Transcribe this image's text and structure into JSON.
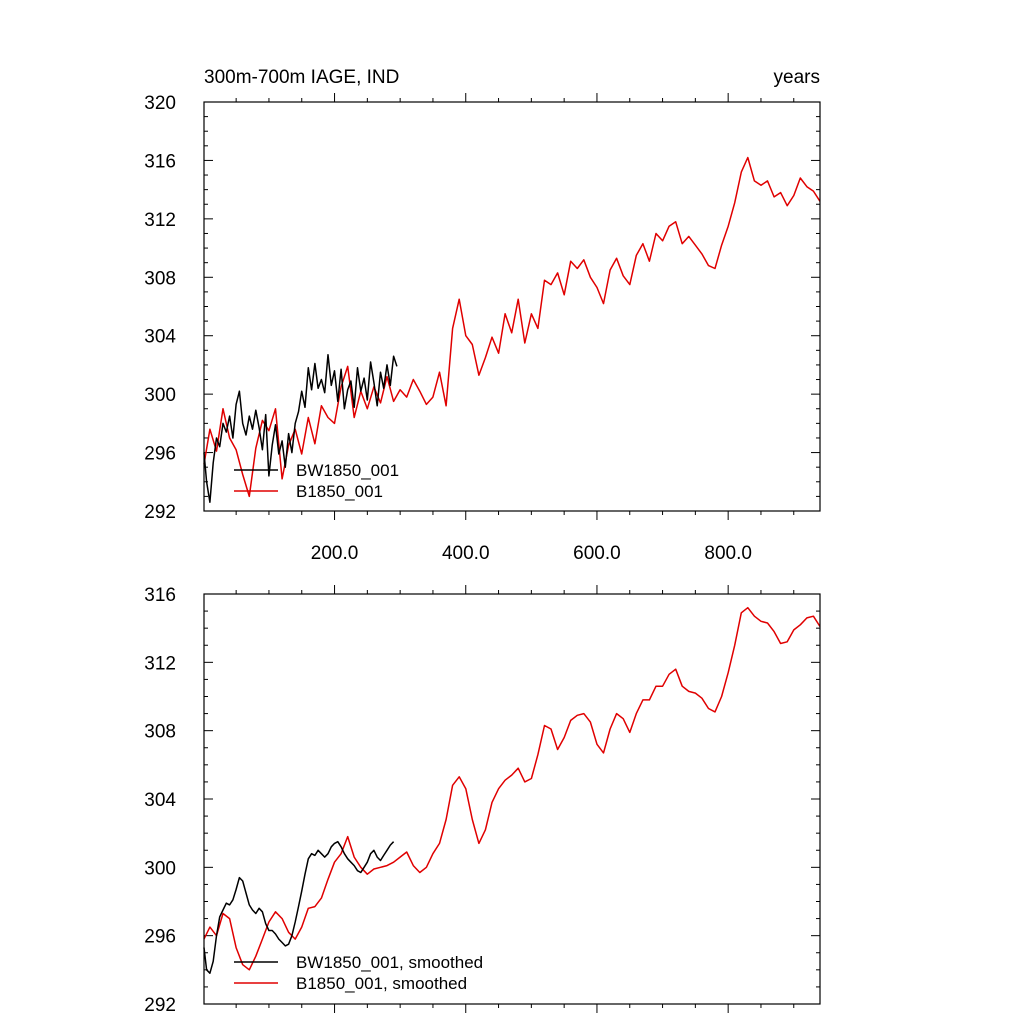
{
  "colors": {
    "bw": "#000000",
    "b": "#e00000",
    "frame": "#000000",
    "background": "#ffffff"
  },
  "chart_data": [
    {
      "type": "line",
      "title": "300m-700m IAGE, IND",
      "units": "years",
      "xlim": [
        1,
        940
      ],
      "ylim": [
        292,
        320
      ],
      "grid": false,
      "legend_placement": "bottom-left",
      "x_ticks": [
        "200.0",
        "400.0",
        "600.0",
        "800.0"
      ],
      "y_ticks": [
        "292",
        "296",
        "300",
        "304",
        "308",
        "312",
        "316",
        "320"
      ],
      "series": [
        {
          "name": "BW1850_001",
          "color": "#000000",
          "x": [
            1,
            5,
            10,
            15,
            20,
            25,
            30,
            35,
            40,
            45,
            50,
            55,
            60,
            65,
            70,
            75,
            80,
            85,
            90,
            95,
            100,
            105,
            110,
            115,
            120,
            125,
            130,
            135,
            140,
            145,
            150,
            155,
            160,
            165,
            170,
            175,
            180,
            185,
            190,
            195,
            200,
            205,
            210,
            215,
            220,
            225,
            230,
            235,
            240,
            245,
            250,
            255,
            260,
            265,
            270,
            275,
            280,
            285,
            290,
            295
          ],
          "values": [
            296.0,
            294.0,
            292.6,
            295.3,
            297.0,
            296.4,
            298.0,
            297.4,
            298.5,
            297.0,
            299.3,
            300.2,
            298.0,
            297.2,
            298.5,
            297.6,
            298.9,
            297.7,
            296.2,
            298.6,
            294.4,
            296.5,
            297.9,
            295.9,
            296.8,
            295.0,
            297.3,
            296.0,
            298.0,
            298.8,
            300.2,
            299.1,
            301.8,
            300.3,
            302.1,
            300.4,
            301.0,
            300.1,
            302.7,
            300.6,
            301.6,
            299.5,
            301.7,
            299.0,
            300.3,
            300.9,
            299.1,
            301.8,
            300.2,
            301.1,
            299.6,
            302.2,
            300.8,
            299.2,
            301.5,
            300.4,
            302.0,
            300.6,
            302.6,
            301.9
          ]
        },
        {
          "name": "B1850_001",
          "color": "#e00000",
          "x": [
            1,
            10,
            20,
            30,
            40,
            50,
            60,
            70,
            80,
            90,
            100,
            110,
            120,
            130,
            140,
            150,
            160,
            170,
            180,
            190,
            200,
            210,
            220,
            230,
            240,
            250,
            260,
            270,
            280,
            290,
            300,
            310,
            320,
            330,
            340,
            350,
            360,
            370,
            380,
            390,
            400,
            410,
            420,
            430,
            440,
            450,
            460,
            470,
            480,
            490,
            500,
            510,
            520,
            530,
            540,
            550,
            560,
            570,
            580,
            590,
            600,
            610,
            620,
            630,
            640,
            650,
            660,
            670,
            680,
            690,
            700,
            710,
            720,
            730,
            740,
            750,
            760,
            770,
            780,
            790,
            800,
            810,
            820,
            830,
            840,
            850,
            860,
            870,
            880,
            890,
            900,
            910,
            920,
            930,
            940
          ],
          "values": [
            295.2,
            297.6,
            296.1,
            299.0,
            297.0,
            296.2,
            294.5,
            293.0,
            296.3,
            298.2,
            297.5,
            299.0,
            294.2,
            296.5,
            297.6,
            295.9,
            298.4,
            296.6,
            299.2,
            298.4,
            298.0,
            300.5,
            301.9,
            298.4,
            300.2,
            299.0,
            300.5,
            299.4,
            301.2,
            299.5,
            300.3,
            299.8,
            301.0,
            300.2,
            299.3,
            299.8,
            301.5,
            299.2,
            304.5,
            306.5,
            304.0,
            303.4,
            301.3,
            302.5,
            303.9,
            302.8,
            305.5,
            304.2,
            306.5,
            303.5,
            305.5,
            304.5,
            307.8,
            307.5,
            308.3,
            306.8,
            309.1,
            308.6,
            309.2,
            308.0,
            307.3,
            306.2,
            308.5,
            309.3,
            308.1,
            307.5,
            309.5,
            310.3,
            309.1,
            311.0,
            310.5,
            311.5,
            311.8,
            310.3,
            310.8,
            310.2,
            309.6,
            308.8,
            308.6,
            310.2,
            311.5,
            313.1,
            315.2,
            316.2,
            314.6,
            314.3,
            314.6,
            313.5,
            313.8,
            312.9,
            313.6,
            314.8,
            314.2,
            313.9,
            313.2
          ]
        }
      ]
    },
    {
      "type": "line",
      "xlim": [
        1,
        940
      ],
      "ylim": [
        292,
        316
      ],
      "grid": false,
      "legend_placement": "bottom-left",
      "y_ticks": [
        "292",
        "296",
        "300",
        "304",
        "308",
        "312",
        "316"
      ],
      "series": [
        {
          "name": "BW1850_001, smoothed",
          "color": "#000000",
          "x": [
            1,
            5,
            10,
            15,
            20,
            25,
            30,
            35,
            40,
            45,
            50,
            55,
            60,
            65,
            70,
            75,
            80,
            85,
            90,
            95,
            100,
            105,
            110,
            115,
            120,
            125,
            130,
            135,
            140,
            145,
            150,
            155,
            160,
            165,
            170,
            175,
            180,
            185,
            190,
            195,
            200,
            205,
            210,
            215,
            220,
            225,
            230,
            235,
            240,
            245,
            250,
            255,
            260,
            265,
            270,
            275,
            280,
            285,
            290
          ],
          "values": [
            295.3,
            294.0,
            293.8,
            294.5,
            296.0,
            297.1,
            297.5,
            297.9,
            297.8,
            298.1,
            298.7,
            299.4,
            299.2,
            298.5,
            297.8,
            297.5,
            297.3,
            297.6,
            297.4,
            296.7,
            296.3,
            296.3,
            296.1,
            295.8,
            295.6,
            295.4,
            295.5,
            296.0,
            296.8,
            297.7,
            298.6,
            299.6,
            300.5,
            300.8,
            300.7,
            301.0,
            300.8,
            300.6,
            300.8,
            301.2,
            301.4,
            301.5,
            301.2,
            300.8,
            300.5,
            300.3,
            300.1,
            299.8,
            299.7,
            300.0,
            300.3,
            300.8,
            301.0,
            300.6,
            300.4,
            300.7,
            301.0,
            301.3,
            301.5
          ]
        },
        {
          "name": "B1850_001, smoothed",
          "color": "#e00000",
          "x": [
            1,
            10,
            20,
            30,
            40,
            50,
            60,
            70,
            80,
            90,
            100,
            110,
            120,
            130,
            140,
            150,
            160,
            170,
            180,
            190,
            200,
            210,
            220,
            230,
            240,
            250,
            260,
            270,
            280,
            290,
            300,
            310,
            320,
            330,
            340,
            350,
            360,
            370,
            380,
            390,
            400,
            410,
            420,
            430,
            440,
            450,
            460,
            470,
            480,
            490,
            500,
            510,
            520,
            530,
            540,
            550,
            560,
            570,
            580,
            590,
            600,
            610,
            620,
            630,
            640,
            650,
            660,
            670,
            680,
            690,
            700,
            710,
            720,
            730,
            740,
            750,
            760,
            770,
            780,
            790,
            800,
            810,
            820,
            830,
            840,
            850,
            860,
            870,
            880,
            890,
            900,
            910,
            920,
            930,
            940
          ],
          "values": [
            295.8,
            296.5,
            296.0,
            297.3,
            297.0,
            295.3,
            294.3,
            294.0,
            294.8,
            295.8,
            296.8,
            297.4,
            297.0,
            296.2,
            295.8,
            296.5,
            297.6,
            297.7,
            298.2,
            299.3,
            300.3,
            300.8,
            301.8,
            300.6,
            300.0,
            299.6,
            299.9,
            300.0,
            300.1,
            300.3,
            300.6,
            300.9,
            300.1,
            299.7,
            300.0,
            300.8,
            301.4,
            302.8,
            304.8,
            305.3,
            304.6,
            302.8,
            301.4,
            302.2,
            303.8,
            304.6,
            305.1,
            305.4,
            305.8,
            305.0,
            305.2,
            306.6,
            308.3,
            308.1,
            306.9,
            307.6,
            308.6,
            308.9,
            309.0,
            308.5,
            307.2,
            306.7,
            308.1,
            309.0,
            308.7,
            307.9,
            309.0,
            309.8,
            309.8,
            310.6,
            310.6,
            311.3,
            311.6,
            310.6,
            310.3,
            310.2,
            309.9,
            309.3,
            309.1,
            310.0,
            311.4,
            313.0,
            314.9,
            315.2,
            314.7,
            314.4,
            314.3,
            313.8,
            313.1,
            313.2,
            313.9,
            314.2,
            314.6,
            314.7,
            314.1
          ]
        }
      ]
    }
  ]
}
